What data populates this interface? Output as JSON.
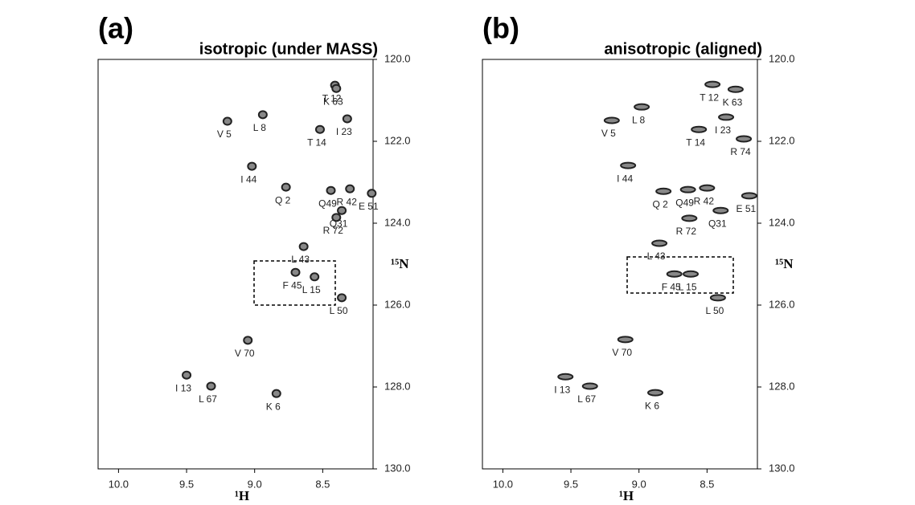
{
  "chart_data": [
    {
      "type": "scatter",
      "title": "(a)",
      "subtitle": "isotropic (under MASS)",
      "xlabel": "¹H",
      "ylabel": "¹⁵N",
      "xlim": [
        10.15,
        8.13
      ],
      "ylim": [
        120,
        130
      ],
      "color": "#222222",
      "xticks": [
        {
          "value": 10,
          "label": "10.0"
        },
        9.5,
        {
          "value": 9,
          "label": "9.0"
        },
        8.5
      ],
      "yticks": [
        {
          "value": 120,
          "label": "120.0"
        },
        {
          "value": 122,
          "label": "122.0"
        },
        {
          "value": 124,
          "label": "124.0"
        },
        {
          "value": 126,
          "label": "126.0"
        },
        {
          "value": 128,
          "label": "128.0"
        },
        {
          "value": 130,
          "label": "130.0"
        }
      ],
      "labels": [
        "T 12",
        "K 63",
        "V 5",
        "L 8",
        "I 23",
        "T 14",
        "I 44",
        "Q 2",
        "Q49",
        "R 42",
        "E 51",
        "Q31",
        "R 72",
        "L 43",
        "F 45",
        "L 15",
        "L 50",
        "V 70",
        "I 13",
        "L 67",
        "K 6"
      ],
      "x": [
        8.41,
        8.4,
        9.2,
        8.94,
        8.32,
        8.52,
        9.02,
        8.77,
        8.44,
        8.3,
        8.14,
        8.36,
        8.4,
        8.64,
        8.7,
        8.56,
        8.36,
        9.05,
        9.5,
        9.32,
        8.84
      ],
      "values": [
        120.63,
        120.71,
        121.51,
        121.35,
        121.45,
        121.71,
        122.61,
        123.12,
        123.2,
        123.16,
        123.27,
        123.69,
        123.86,
        124.57,
        125.2,
        125.31,
        125.82,
        126.86,
        127.71,
        127.98,
        128.16
      ]
    },
    {
      "type": "scatter",
      "title": "(b)",
      "subtitle": "anisotropic (aligned)",
      "xlabel": "¹H",
      "ylabel": "¹⁵N",
      "xlim": [
        10.15,
        8.13
      ],
      "ylim": [
        120,
        130
      ],
      "color": "#222222",
      "xticks": [
        {
          "value": 10,
          "label": "10.0"
        },
        9.5,
        {
          "value": 9,
          "label": "9.0"
        },
        8.5
      ],
      "yticks": [
        {
          "value": 120,
          "label": "120.0"
        },
        {
          "value": 122,
          "label": "122.0"
        },
        {
          "value": 124,
          "label": "124.0"
        },
        {
          "value": 126,
          "label": "126.0"
        },
        {
          "value": 128,
          "label": "128.0"
        },
        {
          "value": 130,
          "label": "130.0"
        }
      ],
      "labels": [
        "T 12",
        "K 63",
        "L 8",
        "V 5",
        "I 23",
        "T 14",
        "R 74",
        "I 44",
        "Q 2",
        "Q49",
        "R 42",
        "E 51",
        "Q31",
        "R 72",
        "L 43",
        "F 45",
        "L 15",
        "L 50",
        "V 70",
        "I 13",
        "L 67",
        "K 6"
      ],
      "x": [
        8.46,
        8.29,
        8.98,
        9.2,
        8.36,
        8.56,
        8.23,
        9.08,
        8.82,
        8.64,
        8.5,
        8.19,
        8.4,
        8.63,
        8.85,
        8.74,
        8.62,
        8.42,
        9.1,
        9.54,
        9.36,
        8.88
      ],
      "values": [
        120.61,
        120.73,
        121.16,
        121.49,
        121.41,
        121.71,
        121.94,
        122.59,
        123.22,
        123.18,
        123.14,
        123.33,
        123.69,
        123.88,
        124.49,
        125.24,
        125.24,
        125.82,
        126.84,
        127.75,
        127.98,
        128.14
      ]
    }
  ]
}
